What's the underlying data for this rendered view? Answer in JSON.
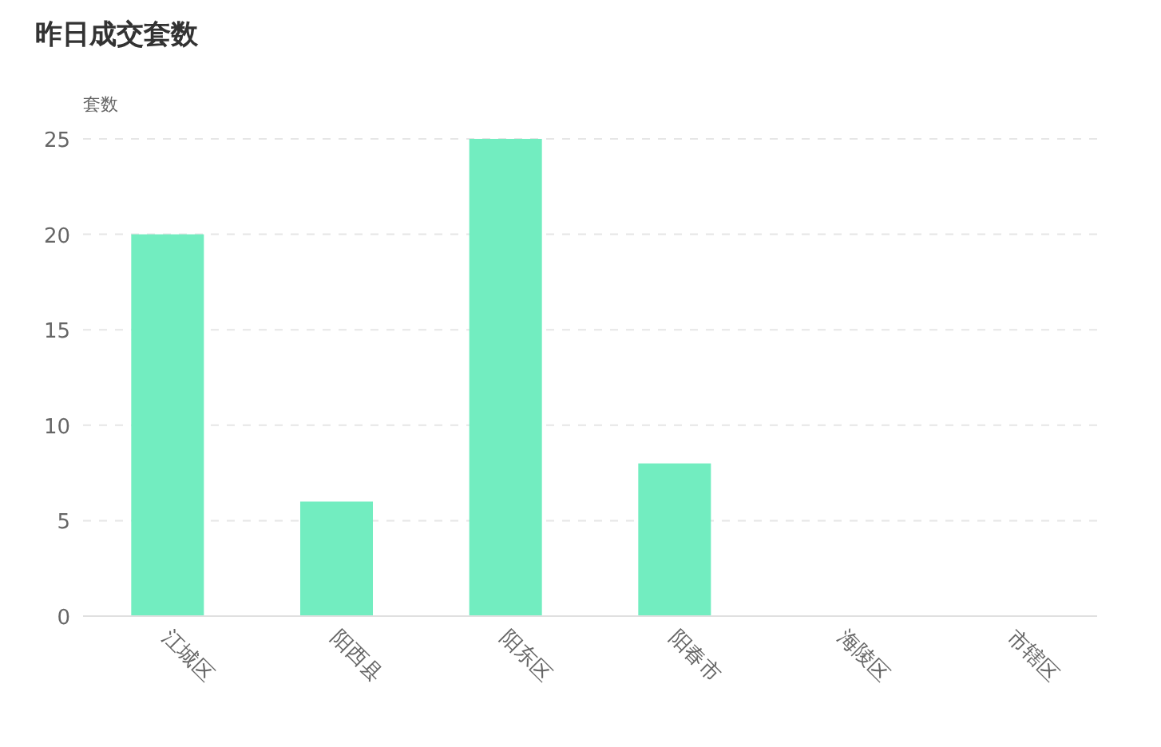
{
  "chart_data": {
    "type": "bar",
    "title": "昨日成交套数",
    "ylabel": "套数",
    "categories": [
      "江城区",
      "阳西县",
      "阳东区",
      "阳春市",
      "海陵区",
      "市辖区"
    ],
    "values": [
      20,
      6,
      25,
      8,
      0,
      0
    ],
    "color": "#72edc0",
    "ylim": [
      0,
      25
    ],
    "yticks": [
      0,
      5,
      10,
      15,
      20,
      25
    ],
    "grid": "y"
  }
}
